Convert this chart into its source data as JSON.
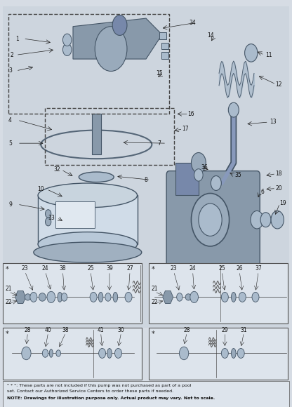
{
  "bg_color": "#d6dce4",
  "border_color": "#555555",
  "text_color": "#333333",
  "footnote_line1": "\" * \": These parts are not included if this pump was not purchased as part of a pool",
  "footnote_line2": "set. Contact our Authorized Service Centers to order these parts if needed.",
  "footnote_line3": "NOTE: Drawings for illustration purpose only. Actual product may vary. Not to scale.",
  "fig_width": 4.16,
  "fig_height": 5.8,
  "dpi": 100
}
